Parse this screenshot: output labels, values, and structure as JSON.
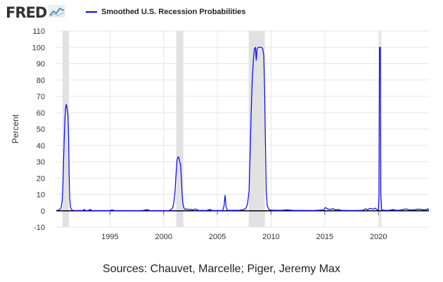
{
  "header": {
    "logo_text": "FRED",
    "logo_icon": "line-chart-icon"
  },
  "colors": {
    "series": "#0000ff",
    "recession": "#e1e1e1",
    "grid": "#e6e6e6",
    "zero_line": "#000000"
  },
  "chart_data": {
    "type": "line",
    "title": "",
    "xlabel": "",
    "ylabel": "Percent",
    "xlim": [
      1990.0,
      2024.7
    ],
    "ylim": [
      -10,
      110
    ],
    "yticks": [
      -10,
      0,
      10,
      20,
      30,
      40,
      50,
      60,
      70,
      80,
      90,
      100,
      110
    ],
    "xticks": [
      1995,
      2000,
      2005,
      2010,
      2015,
      2020
    ],
    "grid": true,
    "legend_placement": "top",
    "recessions": [
      [
        1990.58,
        1991.17
      ],
      [
        2001.17,
        2001.83
      ],
      [
        2007.92,
        2009.42
      ],
      [
        2020.08,
        2020.25
      ]
    ],
    "series": [
      {
        "name": "Smoothed U.S. Recession Probabilities",
        "points": [
          [
            1990.0,
            0.2
          ],
          [
            1990.3,
            0.5
          ],
          [
            1990.45,
            2
          ],
          [
            1990.55,
            6
          ],
          [
            1990.62,
            16
          ],
          [
            1990.7,
            35
          ],
          [
            1990.78,
            52
          ],
          [
            1990.86,
            62
          ],
          [
            1990.92,
            65
          ],
          [
            1991.0,
            63
          ],
          [
            1991.1,
            58
          ],
          [
            1991.15,
            44
          ],
          [
            1991.2,
            22
          ],
          [
            1991.25,
            8
          ],
          [
            1991.33,
            2
          ],
          [
            1991.45,
            0.6
          ],
          [
            1991.6,
            0.2
          ],
          [
            1992.5,
            0.2
          ],
          [
            1992.6,
            0.9
          ],
          [
            1992.7,
            0.2
          ],
          [
            1993.0,
            0.2
          ],
          [
            1993.15,
            0.9
          ],
          [
            1993.3,
            0.2
          ],
          [
            1995.0,
            0.1
          ],
          [
            1995.2,
            0.6
          ],
          [
            1995.4,
            0.1
          ],
          [
            1998.0,
            0.1
          ],
          [
            1998.5,
            0.7
          ],
          [
            1998.7,
            0.1
          ],
          [
            2000.5,
            0.2
          ],
          [
            2000.7,
            0.8
          ],
          [
            2000.85,
            2
          ],
          [
            2000.95,
            5
          ],
          [
            2001.05,
            11
          ],
          [
            2001.15,
            22
          ],
          [
            2001.25,
            31
          ],
          [
            2001.33,
            33
          ],
          [
            2001.42,
            32.5
          ],
          [
            2001.5,
            30
          ],
          [
            2001.58,
            28
          ],
          [
            2001.65,
            20
          ],
          [
            2001.72,
            10
          ],
          [
            2001.8,
            4
          ],
          [
            2001.9,
            1.5
          ],
          [
            2002.0,
            0.8
          ],
          [
            2002.15,
            1.2
          ],
          [
            2002.3,
            0.7
          ],
          [
            2002.5,
            1
          ],
          [
            2002.65,
            0.5
          ],
          [
            2003.0,
            1.1
          ],
          [
            2003.2,
            0.3
          ],
          [
            2004.0,
            0.2
          ],
          [
            2004.3,
            0.9
          ],
          [
            2004.5,
            0.2
          ],
          [
            2005.5,
            0.2
          ],
          [
            2005.62,
            3
          ],
          [
            2005.72,
            9.5
          ],
          [
            2005.82,
            2
          ],
          [
            2005.95,
            0.3
          ],
          [
            2007.0,
            0.3
          ],
          [
            2007.4,
            0.6
          ],
          [
            2007.65,
            1.5
          ],
          [
            2007.8,
            4
          ],
          [
            2007.95,
            12
          ],
          [
            2008.05,
            35
          ],
          [
            2008.15,
            60
          ],
          [
            2008.25,
            80
          ],
          [
            2008.35,
            92
          ],
          [
            2008.45,
            99
          ],
          [
            2008.55,
            100
          ],
          [
            2008.62,
            92
          ],
          [
            2008.7,
            99
          ],
          [
            2008.8,
            100
          ],
          [
            2009.0,
            100
          ],
          [
            2009.12,
            100
          ],
          [
            2009.22,
            99
          ],
          [
            2009.32,
            95
          ],
          [
            2009.4,
            75
          ],
          [
            2009.48,
            40
          ],
          [
            2009.55,
            12
          ],
          [
            2009.65,
            3
          ],
          [
            2009.8,
            0.8
          ],
          [
            2010.0,
            0.4
          ],
          [
            2011.0,
            0.3
          ],
          [
            2011.5,
            0.6
          ],
          [
            2012.0,
            0.3
          ],
          [
            2014.0,
            0.2
          ],
          [
            2014.9,
            0.5
          ],
          [
            2015.05,
            2
          ],
          [
            2015.25,
            1.2
          ],
          [
            2015.5,
            0.8
          ],
          [
            2015.75,
            1.3
          ],
          [
            2016.0,
            0.6
          ],
          [
            2016.2,
            0.9
          ],
          [
            2016.5,
            0.3
          ],
          [
            2017.5,
            0.2
          ],
          [
            2018.5,
            0.3
          ],
          [
            2018.8,
            1.2
          ],
          [
            2019.0,
            0.7
          ],
          [
            2019.2,
            1.5
          ],
          [
            2019.5,
            1
          ],
          [
            2019.7,
            1.6
          ],
          [
            2019.9,
            0.5
          ],
          [
            2020.0,
            0.5
          ],
          [
            2020.05,
            10
          ],
          [
            2020.1,
            100
          ],
          [
            2020.18,
            100
          ],
          [
            2020.22,
            10
          ],
          [
            2020.3,
            0.5
          ],
          [
            2020.6,
            0.3
          ],
          [
            2021.0,
            0.3
          ],
          [
            2021.4,
            0.8
          ],
          [
            2021.6,
            0.3
          ],
          [
            2022.0,
            0.4
          ],
          [
            2022.3,
            0.9
          ],
          [
            2022.6,
            1.1
          ],
          [
            2022.9,
            0.5
          ],
          [
            2023.3,
            0.6
          ],
          [
            2023.7,
            1
          ],
          [
            2024.0,
            0.8
          ],
          [
            2024.3,
            0.5
          ],
          [
            2024.6,
            1.2
          ],
          [
            2024.7,
            0.6
          ]
        ]
      }
    ]
  },
  "source": {
    "text": "Sources: Chauvet, Marcelle; Piger, Jeremy Max"
  }
}
